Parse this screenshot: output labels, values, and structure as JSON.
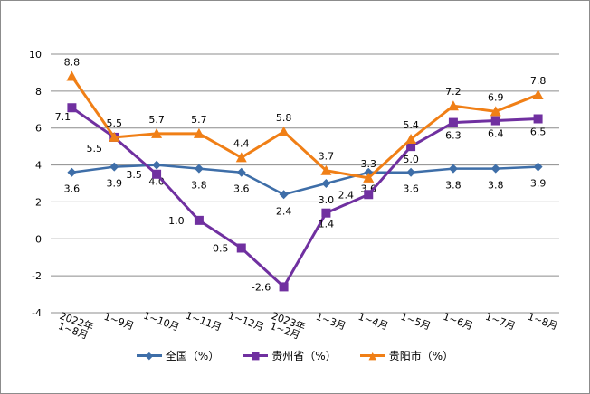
{
  "chart_data": {
    "type": "line",
    "categories": [
      "2022年1~8月",
      "1~9月",
      "1~10月",
      "1~11月",
      "1~12月",
      "2023年1~2月",
      "1~3月",
      "1~4月",
      "1~5月",
      "1~6月",
      "1~7月",
      "1~8月"
    ],
    "ylim": [
      -4,
      10
    ],
    "yticks": [
      "-4",
      "-2",
      "0",
      "2",
      "4",
      "6",
      "8",
      "10"
    ],
    "grid": true,
    "legend_position": "bottom",
    "series": [
      {
        "name": "全国（%）",
        "color": "#3e6ea8",
        "marker": "diamond",
        "values": [
          3.6,
          3.9,
          4.0,
          3.8,
          3.6,
          2.4,
          3.0,
          3.6,
          3.6,
          3.8,
          3.8,
          3.9
        ]
      },
      {
        "name": "贵州省（%）",
        "color": "#7030a0",
        "marker": "square",
        "values": [
          7.1,
          5.5,
          3.5,
          1.0,
          -0.5,
          -2.6,
          1.4,
          2.4,
          5.0,
          6.3,
          6.4,
          6.5
        ]
      },
      {
        "name": "贵阳市（%）",
        "color": "#f07f16",
        "marker": "triangle",
        "values": [
          8.8,
          5.5,
          5.7,
          5.7,
          4.4,
          5.8,
          3.7,
          3.3,
          5.4,
          7.2,
          6.9,
          7.8
        ]
      }
    ]
  }
}
